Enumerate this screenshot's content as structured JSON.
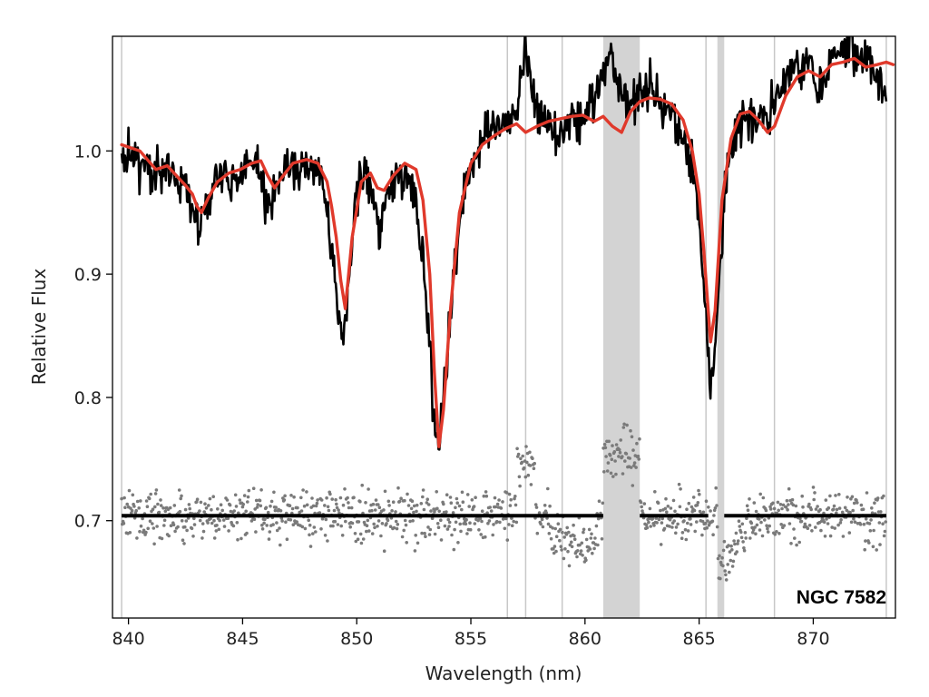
{
  "chart_data": {
    "type": "line",
    "title": "",
    "xlabel": "Wavelength (nm)",
    "ylabel": "Relative Flux",
    "xlim": [
      839.3,
      873.6
    ],
    "ylim": [
      0.621,
      1.093
    ],
    "xticks": [
      840,
      845,
      850,
      855,
      860,
      865,
      870
    ],
    "yticks": [
      0.7,
      0.8,
      0.9,
      1.0
    ],
    "xtick_labels": [
      "840",
      "845",
      "850",
      "855",
      "860",
      "865",
      "870"
    ],
    "ytick_labels": [
      "0.7",
      "0.8",
      "0.9",
      "1.0"
    ],
    "grid": false,
    "annotation": "NGC 7582",
    "masked_bands": [
      [
        860.8,
        862.4
      ],
      [
        865.8,
        866.1
      ]
    ],
    "masked_lines": [
      839.7,
      856.6,
      857.4,
      859.0,
      865.3,
      868.3,
      873.2
    ],
    "residual_offset": 0.704,
    "series": [
      {
        "role": "observed",
        "color": "#000000",
        "x": [
          839.7,
          840.5,
          841.2,
          841.7,
          842.1,
          842.5,
          842.8,
          843.1,
          843.4,
          843.8,
          844.3,
          844.8,
          845.3,
          845.8,
          846.1,
          846.4,
          846.7,
          847.2,
          847.8,
          848.3,
          848.7,
          849.0,
          849.2,
          849.4,
          849.6,
          849.9,
          850.2,
          850.5,
          850.8,
          851.0,
          851.3,
          851.7,
          852.2,
          852.6,
          852.9,
          853.2,
          853.4,
          853.6,
          853.8,
          854.1,
          854.5,
          855.0,
          855.5,
          856.0,
          856.5,
          857.0,
          857.4,
          857.9,
          858.4,
          858.9,
          859.4,
          859.9,
          860.4,
          860.8,
          861.2,
          861.6,
          862.0,
          862.4,
          862.8,
          863.3,
          863.8,
          864.3,
          864.7,
          865.0,
          865.3,
          865.5,
          865.7,
          865.9,
          866.2,
          866.6,
          867.0,
          867.5,
          868.0,
          868.3,
          868.8,
          869.3,
          869.8,
          870.3,
          870.8,
          871.3,
          871.8,
          872.3,
          872.8,
          873.2
        ],
        "y": [
          1.0,
          0.99,
          0.98,
          0.99,
          0.98,
          0.97,
          0.96,
          0.94,
          0.95,
          0.97,
          0.98,
          0.98,
          0.99,
          0.98,
          0.95,
          0.97,
          0.98,
          0.99,
          0.99,
          0.98,
          0.95,
          0.91,
          0.86,
          0.85,
          0.88,
          0.95,
          0.98,
          0.98,
          0.95,
          0.93,
          0.97,
          0.98,
          0.98,
          0.96,
          0.91,
          0.84,
          0.78,
          0.76,
          0.79,
          0.87,
          0.95,
          0.99,
          1.01,
          1.02,
          1.02,
          1.03,
          1.08,
          1.03,
          1.02,
          1.01,
          1.02,
          1.03,
          1.04,
          1.06,
          1.07,
          1.05,
          1.04,
          1.05,
          1.05,
          1.04,
          1.03,
          1.01,
          0.99,
          0.95,
          0.87,
          0.81,
          0.83,
          0.9,
          0.98,
          1.02,
          1.03,
          1.02,
          1.03,
          1.04,
          1.06,
          1.07,
          1.07,
          1.06,
          1.07,
          1.08,
          1.08,
          1.07,
          1.06,
          1.04
        ]
      },
      {
        "role": "model",
        "color": "#e0392b",
        "x": [
          839.7,
          840.5,
          841.2,
          841.7,
          842.1,
          842.5,
          842.8,
          843.0,
          843.2,
          843.5,
          843.9,
          844.4,
          844.9,
          845.4,
          845.8,
          846.1,
          846.4,
          846.7,
          847.2,
          847.8,
          848.3,
          848.7,
          848.9,
          849.1,
          849.3,
          849.5,
          849.8,
          850.2,
          850.6,
          850.9,
          851.2,
          851.6,
          852.1,
          852.6,
          852.9,
          853.2,
          853.4,
          853.6,
          853.8,
          854.1,
          854.5,
          855.0,
          855.5,
          856.0,
          856.5,
          857.0,
          857.4,
          857.9,
          858.4,
          858.9,
          859.4,
          859.9,
          860.4,
          860.8,
          861.2,
          861.6,
          862.0,
          862.4,
          862.8,
          863.3,
          863.8,
          864.3,
          864.7,
          865.0,
          865.2,
          865.4,
          865.5,
          865.7,
          866.0,
          866.4,
          866.8,
          867.2,
          867.6,
          868.0,
          868.3,
          868.8,
          869.3,
          869.8,
          870.3,
          870.8,
          871.3,
          871.8,
          872.3,
          872.8,
          873.2,
          873.5
        ],
        "y": [
          1.005,
          1.0,
          0.985,
          0.988,
          0.98,
          0.972,
          0.965,
          0.955,
          0.95,
          0.962,
          0.975,
          0.982,
          0.985,
          0.99,
          0.992,
          0.98,
          0.97,
          0.978,
          0.99,
          0.993,
          0.99,
          0.975,
          0.955,
          0.93,
          0.895,
          0.872,
          0.93,
          0.975,
          0.982,
          0.97,
          0.968,
          0.98,
          0.99,
          0.985,
          0.96,
          0.9,
          0.82,
          0.76,
          0.79,
          0.87,
          0.95,
          0.99,
          1.005,
          1.012,
          1.018,
          1.022,
          1.015,
          1.02,
          1.024,
          1.026,
          1.028,
          1.029,
          1.024,
          1.028,
          1.02,
          1.015,
          1.032,
          1.04,
          1.043,
          1.042,
          1.038,
          1.025,
          1.0,
          0.965,
          0.92,
          0.87,
          0.845,
          0.87,
          0.96,
          1.01,
          1.03,
          1.032,
          1.025,
          1.015,
          1.02,
          1.045,
          1.06,
          1.065,
          1.06,
          1.07,
          1.072,
          1.075,
          1.068,
          1.07,
          1.072,
          1.07
        ]
      }
    ],
    "residual_seed": 7582
  }
}
